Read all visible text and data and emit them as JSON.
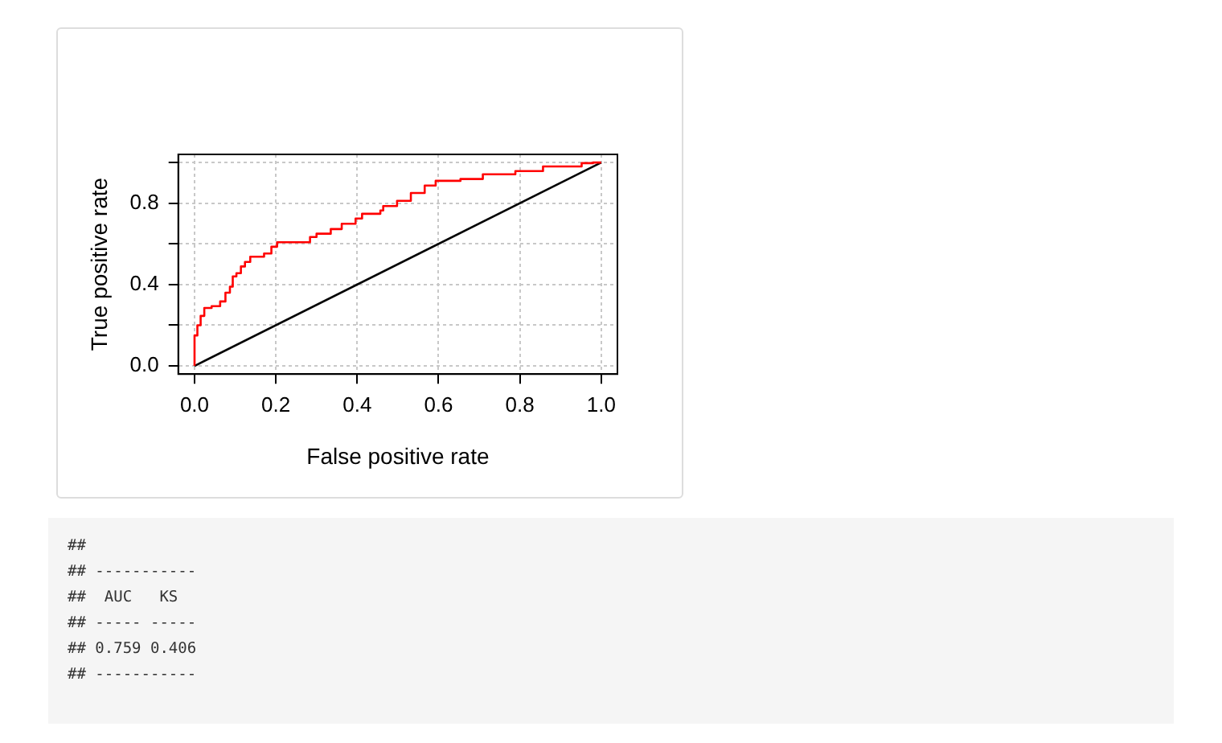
{
  "chart_data": {
    "type": "step",
    "xlabel": "False positive rate",
    "ylabel": "True positive rate",
    "xlim": [
      -0.04,
      1.04
    ],
    "ylim": [
      -0.04,
      1.04
    ],
    "xticks": [
      {
        "value": 0,
        "label": "0.0"
      },
      {
        "value": 0.2,
        "label": "0.2"
      },
      {
        "value": 0.4,
        "label": "0.4"
      },
      {
        "value": 0.6,
        "label": "0.6"
      },
      {
        "value": 0.8,
        "label": "0.8"
      },
      {
        "value": 1,
        "label": "1.0"
      }
    ],
    "yticks": [
      {
        "value": 0,
        "label": "0.0"
      },
      {
        "value": 0.2,
        "label": null
      },
      {
        "value": 0.4,
        "label": "0.4"
      },
      {
        "value": 0.6,
        "label": null
      },
      {
        "value": 0.8,
        "label": "0.8"
      },
      {
        "value": 1,
        "label": null
      }
    ],
    "grid": true,
    "legend": false,
    "marker": "none",
    "series": [
      {
        "color": "#ff0000",
        "x": [
          0,
          0,
          0.007,
          0.007,
          0.015,
          0.024,
          0.042,
          0.063,
          0.076,
          0.087,
          0.094,
          0.103,
          0.114,
          0.124,
          0.137,
          0.171,
          0.189,
          0.203,
          0.284,
          0.3,
          0.335,
          0.362,
          0.396,
          0.412,
          0.457,
          0.464,
          0.498,
          0.532,
          0.566,
          0.593,
          0.654,
          0.709,
          0.789,
          0.857,
          0.952,
          0.98,
          1
        ],
        "values": [
          0,
          0.15,
          0.15,
          0.2,
          0.246,
          0.285,
          0.294,
          0.317,
          0.36,
          0.39,
          0.44,
          0.456,
          0.489,
          0.511,
          0.537,
          0.553,
          0.586,
          0.608,
          0.634,
          0.65,
          0.673,
          0.699,
          0.725,
          0.748,
          0.764,
          0.786,
          0.812,
          0.85,
          0.887,
          0.91,
          0.919,
          0.942,
          0.958,
          0.981,
          0.997,
          1,
          1
        ]
      },
      {
        "type": "line",
        "color": "#000000",
        "x": [
          0,
          1
        ],
        "values": [
          0,
          1
        ]
      }
    ],
    "annotations": [
      "##",
      "## -----------",
      "##  AUC   KS",
      "## ----- -----",
      "## 0.759 0.406",
      "## -----------"
    ]
  }
}
